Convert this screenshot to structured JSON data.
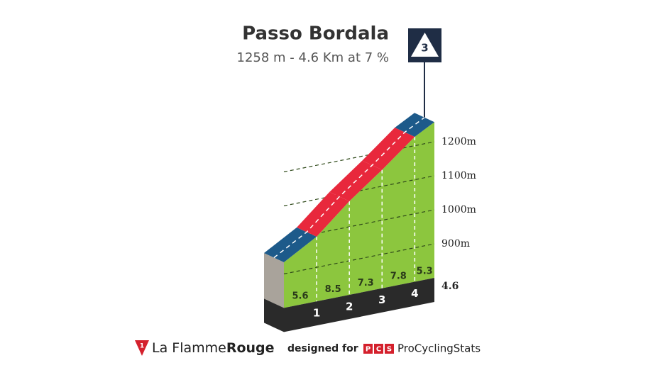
{
  "chart_data": {
    "type": "profile",
    "title": "Passo Bordala",
    "subtitle": "1258 m - 4.6 Km at 7 %",
    "summit": 1258,
    "category": "3",
    "values": [
      5.6,
      8.5,
      7.3,
      7.8,
      5.3
    ],
    "colors": [
      "#1d5a8a",
      "#e8283c",
      "#e8283c",
      "#e8283c",
      "#1d5a8a"
    ],
    "face_color": "#8cc63e",
    "xlim": [
      0,
      4.6
    ],
    "xticks": [
      1,
      2,
      3,
      4
    ],
    "ylim": [
      800,
      1300
    ],
    "yticks": [
      {
        "value": 900,
        "label": "900m"
      },
      {
        "value": 1000,
        "label": "1000m"
      },
      {
        "value": 1100,
        "label": "1100m"
      },
      {
        "value": 1200,
        "label": "1200m"
      }
    ],
    "grid": true
  },
  "footer": {
    "logo_number": "1",
    "brand_a": "La Flamme",
    "brand_b": "Rouge",
    "designed": "designed for",
    "pcs": [
      "P",
      "C",
      "S"
    ],
    "pcs_name": "ProCyclingStats"
  }
}
